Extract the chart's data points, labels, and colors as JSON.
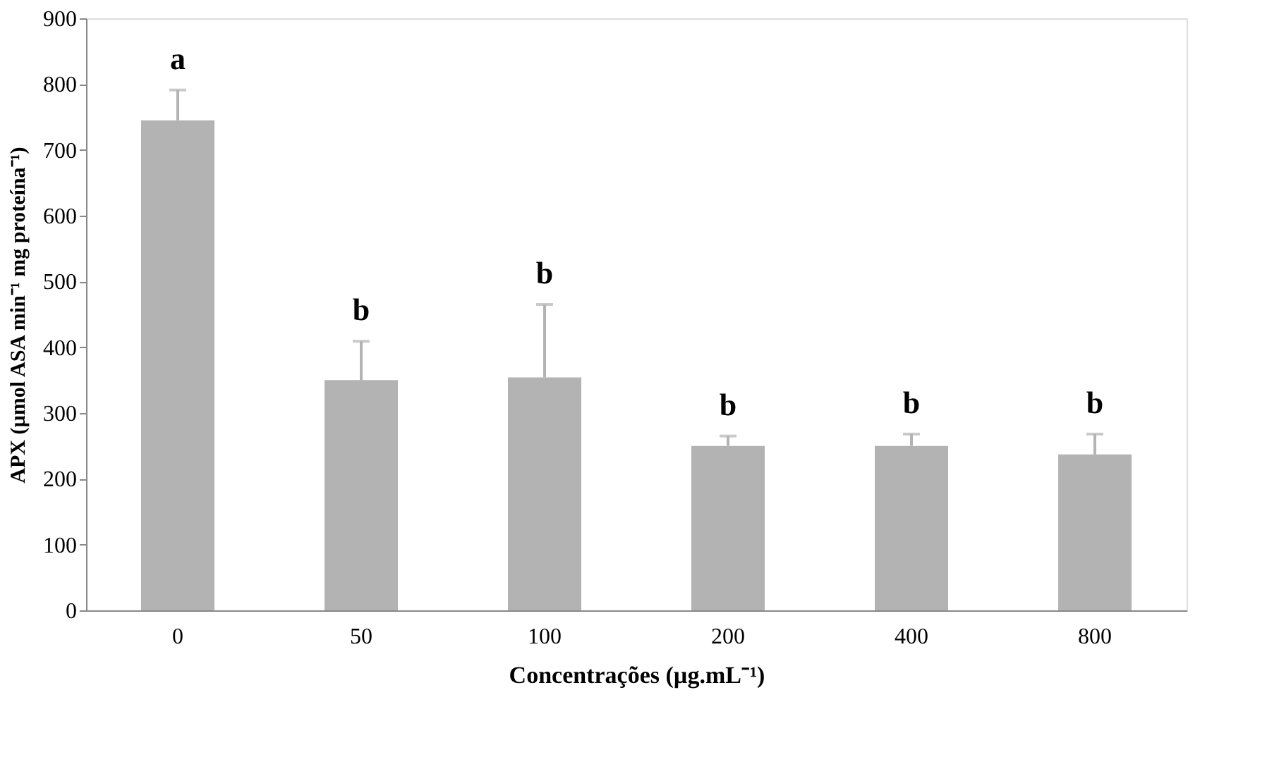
{
  "chart_data": {
    "type": "bar",
    "xlabel": "Concentrações (µg.mL⁻¹)",
    "ylabel": "APX (µmol ASA min⁻¹ mg proteína⁻¹)",
    "categories": [
      "0",
      "50",
      "100",
      "200",
      "400",
      "800"
    ],
    "values": [
      745,
      350,
      354,
      250,
      250,
      237
    ],
    "errors": [
      [
        745,
        791
      ],
      [
        350,
        409
      ],
      [
        354,
        465
      ],
      [
        250,
        265
      ],
      [
        250,
        268
      ],
      [
        237,
        268
      ]
    ],
    "color": "#b3b3b3",
    "ylim": [
      0,
      900
    ],
    "yticks": [
      0,
      100,
      200,
      300,
      400,
      500,
      600,
      700,
      800,
      900
    ],
    "grid": false,
    "annotations": [
      "a",
      "b",
      "b",
      "b",
      "b",
      "b"
    ]
  }
}
